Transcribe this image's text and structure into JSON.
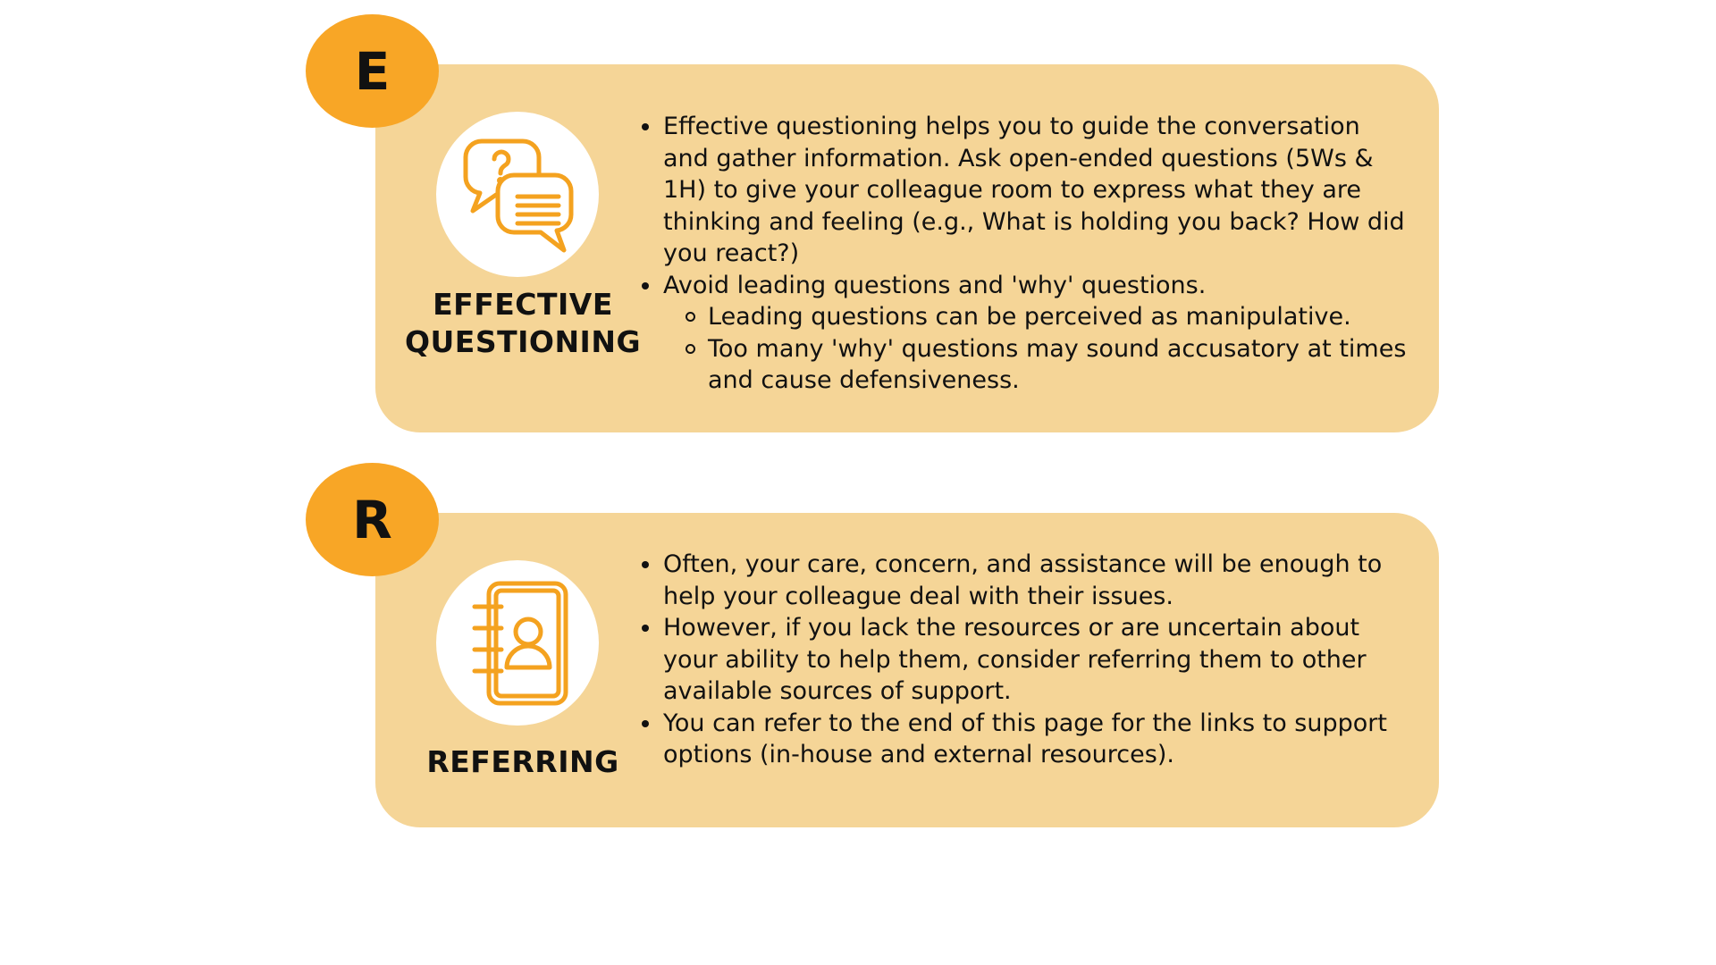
{
  "colors": {
    "card_background": "#f5d597",
    "badge_orange": "#f8a626",
    "icon_orange": "#f4a21f"
  },
  "sections": [
    {
      "letter": "E",
      "icon": "question-chat-bubbles-icon",
      "title_line1": "EFFECTIVE",
      "title_line2": "QUESTIONING",
      "bullets": [
        "Effective questioning helps you to guide the conversation and gather information. Ask open-ended questions (5Ws & 1H) to give your colleague room to express what they are thinking and feeling (e.g., What is holding you back? How did you react?)",
        "Avoid leading questions and 'why' questions."
      ],
      "sub_bullets": [
        "Leading questions can be perceived as manipulative.",
        "Too many 'why' questions may sound accusatory at times and cause defensiveness."
      ]
    },
    {
      "letter": "R",
      "icon": "contact-book-icon",
      "title_line1": "REFERRING",
      "bullets": [
        "Often, your care, concern, and assistance will be enough to help your colleague deal with their issues.",
        "However, if you lack the resources or are uncertain about your ability to help them, consider referring them to other available sources of support.",
        "You can refer to the end of this page for the links to support options (in-house and external resources)."
      ]
    }
  ]
}
